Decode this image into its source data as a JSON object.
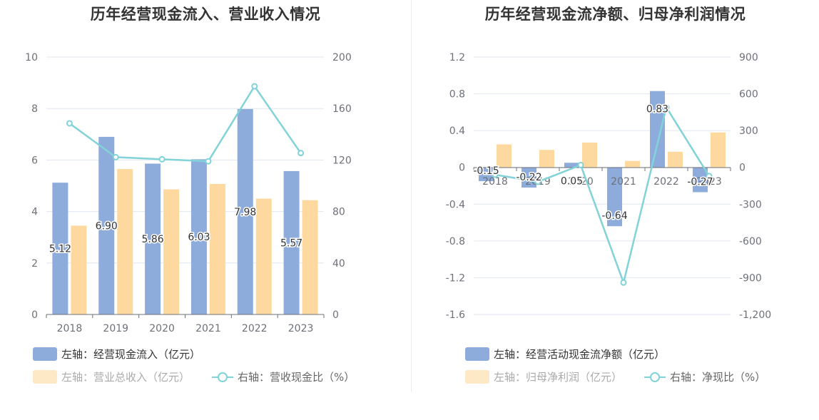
{
  "colors": {
    "bar_primary": "#8eacdb",
    "bar_secondary": "#fed99f",
    "line": "#81d3d8",
    "legend_faded": "#fde9c6",
    "grid": "#e0e6f1"
  },
  "chart_data": [
    {
      "type": "bar",
      "title": "历年经营现金流入、营业收入情况",
      "categories": [
        "2018",
        "2019",
        "2020",
        "2021",
        "2022",
        "2023"
      ],
      "y_left": {
        "min": 0,
        "max": 10,
        "ticks": [
          "0",
          "2",
          "4",
          "6",
          "8",
          "10"
        ]
      },
      "y_right": {
        "min": 0,
        "max": 200,
        "ticks": [
          "0",
          "40",
          "80",
          "120",
          "160",
          "200"
        ]
      },
      "series": [
        {
          "name": "左轴：经营现金流入（亿元）",
          "kind": "bar",
          "axis": "left",
          "values": [
            5.12,
            6.9,
            5.86,
            6.03,
            7.98,
            5.57
          ],
          "labels": [
            "5.12",
            "6.90",
            "5.86",
            "6.03",
            "7.98",
            "5.57"
          ]
        },
        {
          "name": "左轴：营业总收入（亿元）",
          "kind": "bar",
          "axis": "left",
          "values": [
            3.45,
            5.65,
            4.86,
            5.07,
            4.5,
            4.44
          ]
        },
        {
          "name": "右轴：营收现金比（%）",
          "kind": "line",
          "axis": "right",
          "values": [
            148.5,
            122.2,
            120.6,
            119.0,
            177.3,
            125.4
          ]
        }
      ],
      "legend_position": "bottom"
    },
    {
      "type": "bar",
      "title": "历年经营现金流净额、归母净利润情况",
      "categories": [
        "2018",
        "2019",
        "2020",
        "2021",
        "2022",
        "2023"
      ],
      "y_left": {
        "min": -1.6,
        "max": 1.2,
        "ticks": [
          "-1.6",
          "-1.2",
          "-0.8",
          "-0.4",
          "0",
          "0.4",
          "0.8",
          "1.2"
        ]
      },
      "y_right": {
        "min": -1200,
        "max": 900,
        "ticks": [
          "-1,200",
          "-900",
          "-600",
          "-300",
          "0",
          "300",
          "600",
          "900"
        ]
      },
      "series": [
        {
          "name": "左轴：经营活动现金流净额（亿元）",
          "kind": "bar",
          "axis": "left",
          "values": [
            -0.15,
            -0.22,
            0.05,
            -0.64,
            0.83,
            -0.27
          ],
          "labels": [
            "-0.15",
            "-0.22",
            "0.05",
            "-0.64",
            "0.83",
            "-0.27"
          ]
        },
        {
          "name": "左轴：归母净利润（亿元）",
          "kind": "bar",
          "axis": "left",
          "values": [
            0.25,
            0.19,
            0.27,
            0.07,
            0.17,
            0.38
          ]
        },
        {
          "name": "右轴：净现比（%）",
          "kind": "line",
          "axis": "right",
          "values": [
            -60,
            -118,
            19,
            -940,
            490,
            -71
          ]
        }
      ],
      "legend_position": "bottom"
    }
  ]
}
